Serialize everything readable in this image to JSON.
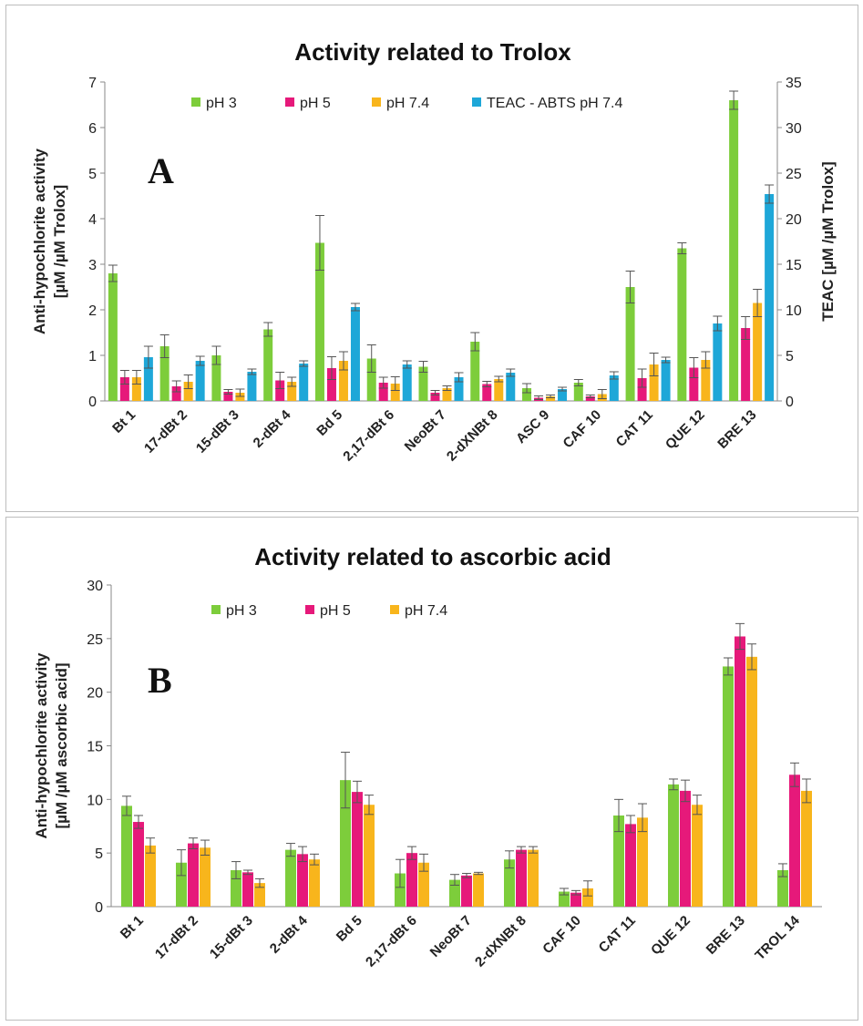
{
  "chart_data": [
    {
      "type": "bar",
      "title": "Activity related to Trolox",
      "panel_letter": "A",
      "ylabel": [
        "Anti-hypochlorite activity",
        "[µM /µM Trolox]"
      ],
      "ylabel_right": "TEAC  [µM /µM Trolox]",
      "ylim": [
        0,
        7
      ],
      "yticks": [
        0,
        1,
        2,
        3,
        4,
        5,
        6,
        7
      ],
      "ylim_right": [
        0,
        35
      ],
      "yticks_right": [
        0,
        5,
        10,
        15,
        20,
        25,
        30,
        35
      ],
      "categories": [
        "Bt  1",
        "17-dBt  2",
        "15-dBt  3",
        "2-dBt  4",
        "Bd  5",
        "2,17-dBt  6",
        "NeoBt  7",
        "2-dXNBt  8",
        "ASC  9",
        "CAF  10",
        "CAT  11",
        "QUE  12",
        "BRE  13"
      ],
      "series": [
        {
          "name": "pH 3",
          "color": "#7dcd3b",
          "axis": "left",
          "values": [
            2.8,
            1.2,
            1.0,
            1.57,
            3.47,
            0.93,
            0.75,
            1.3,
            0.28,
            0.4,
            2.5,
            3.35,
            6.6
          ],
          "errors": [
            0.18,
            0.25,
            0.2,
            0.15,
            0.6,
            0.3,
            0.12,
            0.2,
            0.1,
            0.07,
            0.35,
            0.12,
            0.2
          ]
        },
        {
          "name": "pH 5",
          "color": "#e6197a",
          "axis": "left",
          "values": [
            0.52,
            0.32,
            0.2,
            0.45,
            0.72,
            0.4,
            0.18,
            0.37,
            0.07,
            0.1,
            0.5,
            0.73,
            1.6
          ],
          "errors": [
            0.15,
            0.12,
            0.05,
            0.18,
            0.25,
            0.12,
            0.05,
            0.06,
            0.04,
            0.03,
            0.2,
            0.22,
            0.25
          ]
        },
        {
          "name": "pH 7.4",
          "color": "#f8b51c",
          "axis": "left",
          "values": [
            0.52,
            0.42,
            0.18,
            0.42,
            0.88,
            0.38,
            0.28,
            0.48,
            0.1,
            0.15,
            0.8,
            0.9,
            2.15
          ],
          "errors": [
            0.15,
            0.15,
            0.08,
            0.1,
            0.2,
            0.15,
            0.05,
            0.06,
            0.03,
            0.1,
            0.25,
            0.18,
            0.3
          ]
        },
        {
          "name": "TEAC  -  ABTS pH 7.4",
          "color": "#1ea7d8",
          "axis": "right",
          "values": [
            4.8,
            4.4,
            3.2,
            4.1,
            10.3,
            4.0,
            2.6,
            3.1,
            1.3,
            2.8,
            4.5,
            8.5,
            22.7
          ],
          "errors": [
            1.2,
            0.5,
            0.3,
            0.3,
            0.4,
            0.4,
            0.5,
            0.4,
            0.2,
            0.4,
            0.3,
            0.8,
            1.0
          ]
        }
      ]
    },
    {
      "type": "bar",
      "title": "Activity related to ascorbic acid",
      "panel_letter": "B",
      "ylabel": [
        "Anti-hypochlorite activity",
        "[µM /µM ascorbic acid]"
      ],
      "ylim": [
        0,
        30
      ],
      "yticks": [
        0,
        5,
        10,
        15,
        20,
        25,
        30
      ],
      "categories": [
        "Bt  1",
        "17-dBt  2",
        "15-dBt  3",
        "2-dBt  4",
        "Bd  5",
        "2,17-dBt  6",
        "NeoBt  7",
        "2-dXNBt  8",
        "CAF  10",
        "CAT  11",
        "QUE  12",
        "BRE  13",
        "TROL  14"
      ],
      "series": [
        {
          "name": "pH 3",
          "color": "#7dcd3b",
          "values": [
            9.4,
            4.1,
            3.4,
            5.3,
            11.8,
            3.1,
            2.5,
            4.4,
            1.4,
            8.5,
            11.4,
            22.4,
            3.4
          ],
          "errors": [
            0.9,
            1.2,
            0.8,
            0.6,
            2.6,
            1.3,
            0.5,
            0.8,
            0.3,
            1.5,
            0.5,
            0.8,
            0.6
          ]
        },
        {
          "name": "pH 5",
          "color": "#e6197a",
          "values": [
            7.9,
            5.9,
            3.2,
            4.9,
            10.7,
            5.0,
            2.9,
            5.3,
            1.3,
            7.7,
            10.8,
            25.2,
            12.3
          ],
          "errors": [
            0.6,
            0.5,
            0.2,
            0.7,
            1.0,
            0.6,
            0.2,
            0.3,
            0.2,
            0.8,
            1.0,
            1.2,
            1.1
          ]
        },
        {
          "name": "pH 7.4",
          "color": "#f8b51c",
          "values": [
            5.7,
            5.5,
            2.2,
            4.4,
            9.5,
            4.1,
            3.1,
            5.3,
            1.7,
            8.3,
            9.5,
            23.3,
            10.8
          ],
          "errors": [
            0.7,
            0.7,
            0.4,
            0.5,
            0.9,
            0.8,
            0.1,
            0.3,
            0.7,
            1.3,
            0.9,
            1.2,
            1.1
          ]
        }
      ]
    }
  ]
}
